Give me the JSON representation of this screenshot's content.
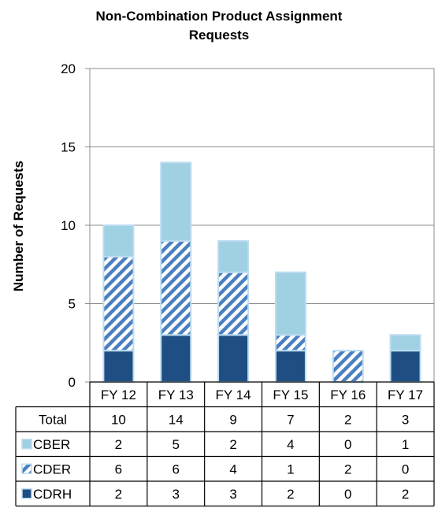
{
  "chart_data": {
    "type": "bar",
    "stacked": true,
    "title": [
      "Non-Combination Product Assignment",
      "Requests"
    ],
    "ylabel": "Number of Requests",
    "xlabel": "",
    "ylim": [
      0,
      20
    ],
    "yticks": [
      0,
      5,
      10,
      15,
      20
    ],
    "grid": true,
    "categories": [
      "FY 12",
      "FY 13",
      "FY 14",
      "FY 15",
      "FY 16",
      "FY 17"
    ],
    "series": [
      {
        "name": "CDRH",
        "values": [
          2,
          3,
          3,
          2,
          0,
          2
        ],
        "color": "#1f4e84",
        "pattern": "solid"
      },
      {
        "name": "CDER",
        "values": [
          6,
          6,
          4,
          1,
          2,
          0
        ],
        "color": "#4a7fc1",
        "pattern": "diagonal-stripes"
      },
      {
        "name": "CBER",
        "values": [
          2,
          5,
          2,
          4,
          0,
          1
        ],
        "color": "#9fd1e3",
        "pattern": "solid"
      }
    ],
    "table": {
      "total_label": "Total",
      "totals": [
        10,
        14,
        9,
        7,
        2,
        3
      ],
      "row_order": [
        "CBER",
        "CDER",
        "CDRH"
      ]
    }
  }
}
